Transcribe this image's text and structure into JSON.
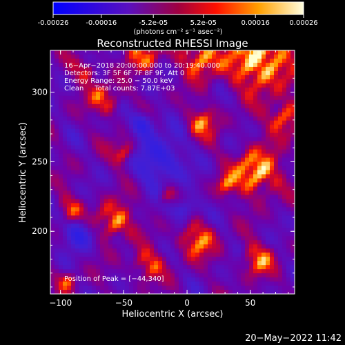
{
  "colorbar": {
    "tick_labels": [
      "-0.00026",
      "-0.00016",
      "-5.2e-05",
      "5.2e-05",
      "0.00016",
      "0.00026"
    ],
    "tick_values": [
      -0.00026,
      -0.00016,
      -5.2e-05,
      5.2e-05,
      0.00016,
      0.00026
    ],
    "range": [
      -0.00026,
      0.00026
    ],
    "units": "(photons cm⁻² s⁻¹ asec⁻²)",
    "colors": [
      "#0000ff",
      "#6a00b0",
      "#ff0000",
      "#ffa000",
      "#ffffe0"
    ]
  },
  "plot": {
    "title": "Reconstructed RHESSI Image",
    "xlabel": "Heliocentric X (arcsec)",
    "ylabel": "Heliocentric Y (arcsec)",
    "xlim": [
      -108,
      85
    ],
    "ylim": [
      155,
      330
    ],
    "xticks": [
      -100,
      -50,
      0,
      50
    ],
    "yticks": [
      200,
      250,
      300
    ],
    "xtick_labels": [
      "−100",
      "−50",
      "0",
      "50"
    ],
    "ytick_labels": [
      "200",
      "250",
      "300"
    ]
  },
  "annotations": {
    "line1": "16−Apr−2018 20:00:00.000 to 20:19:40.000",
    "line2": "Detectors: 3F 5F 6F 7F 8F 9F, Att 0",
    "line3": "Energy Range: 25.0 − 50.0 keV",
    "line4": "Clean     Total counts: 7.87E+03",
    "peak": "Position of Peak = [−44,340]"
  },
  "timestamp": "20−May−2022 11:42"
}
